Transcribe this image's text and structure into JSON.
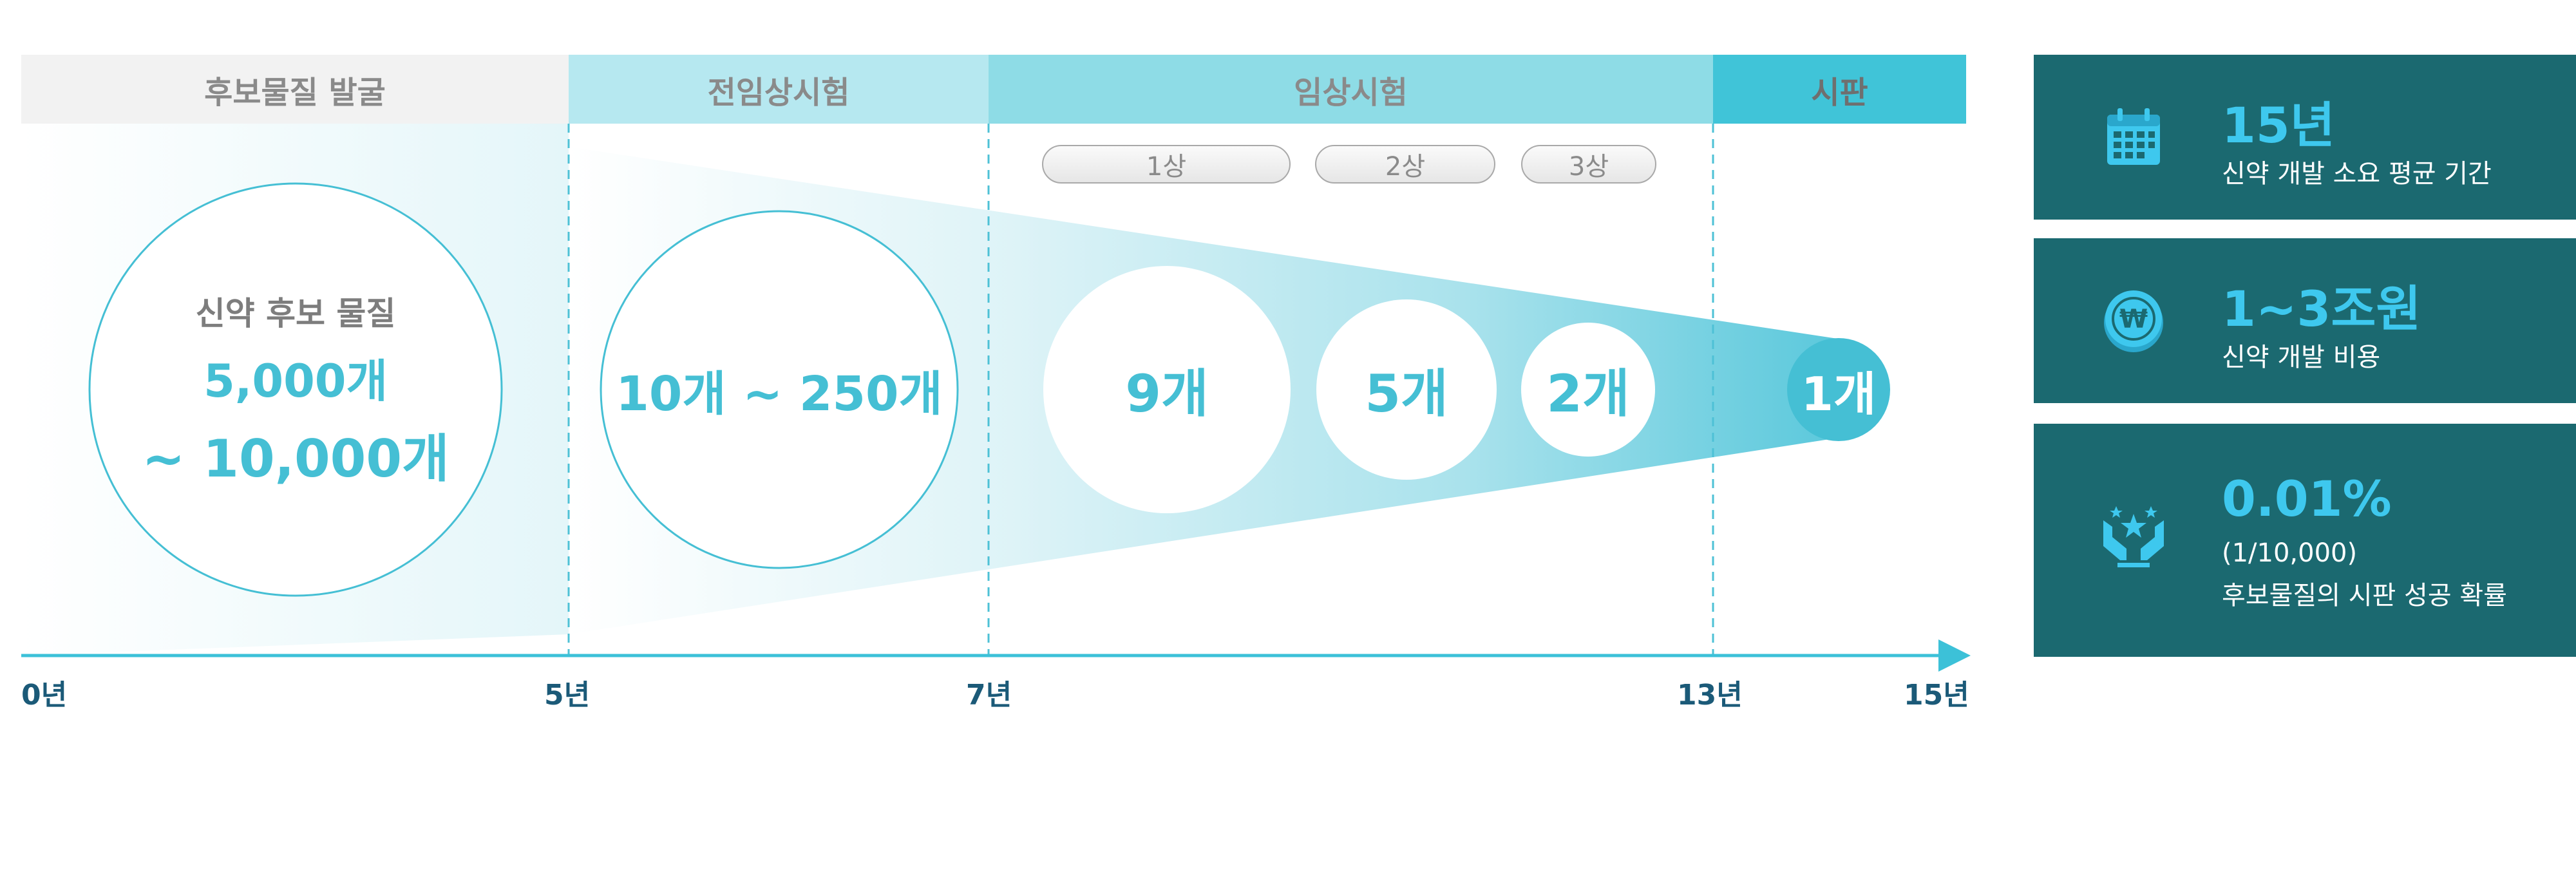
{
  "phases": [
    {
      "label": "후보물질 발굴"
    },
    {
      "label": "전임상시험"
    },
    {
      "label": "임상시험"
    },
    {
      "label": "시판"
    }
  ],
  "stages": [
    "1상",
    "2상",
    "3상"
  ],
  "discovery": {
    "caption": "신약 후보 물질",
    "count_line1": "5,000개",
    "count_line2": "~ 10,000개"
  },
  "preclinical": {
    "count": "10개 ~ 250개"
  },
  "clinical_counts": [
    "9개",
    "5개",
    "2개"
  ],
  "market_count": "1개",
  "timeline": [
    "0년",
    "5년",
    "7년",
    "13년",
    "15년"
  ],
  "cards": [
    {
      "icon": "calendar-icon",
      "value": "15년",
      "desc": "신약 개발 소요 평균 기간"
    },
    {
      "icon": "won-coin-icon",
      "value": "1~3조원",
      "desc": "신약 개발 비용"
    },
    {
      "icon": "hands-stars-icon",
      "value": "0.01%",
      "desc_line1": "(1/10,000)",
      "desc_line2": "후보물질의 시판 성공 확률"
    }
  ],
  "colors": {
    "accent": "#45bfd4",
    "axis": "#3cc1d8",
    "card_bg": "#1b6970",
    "card_value": "#3ec8ee",
    "tick_text": "#1b5a78"
  }
}
